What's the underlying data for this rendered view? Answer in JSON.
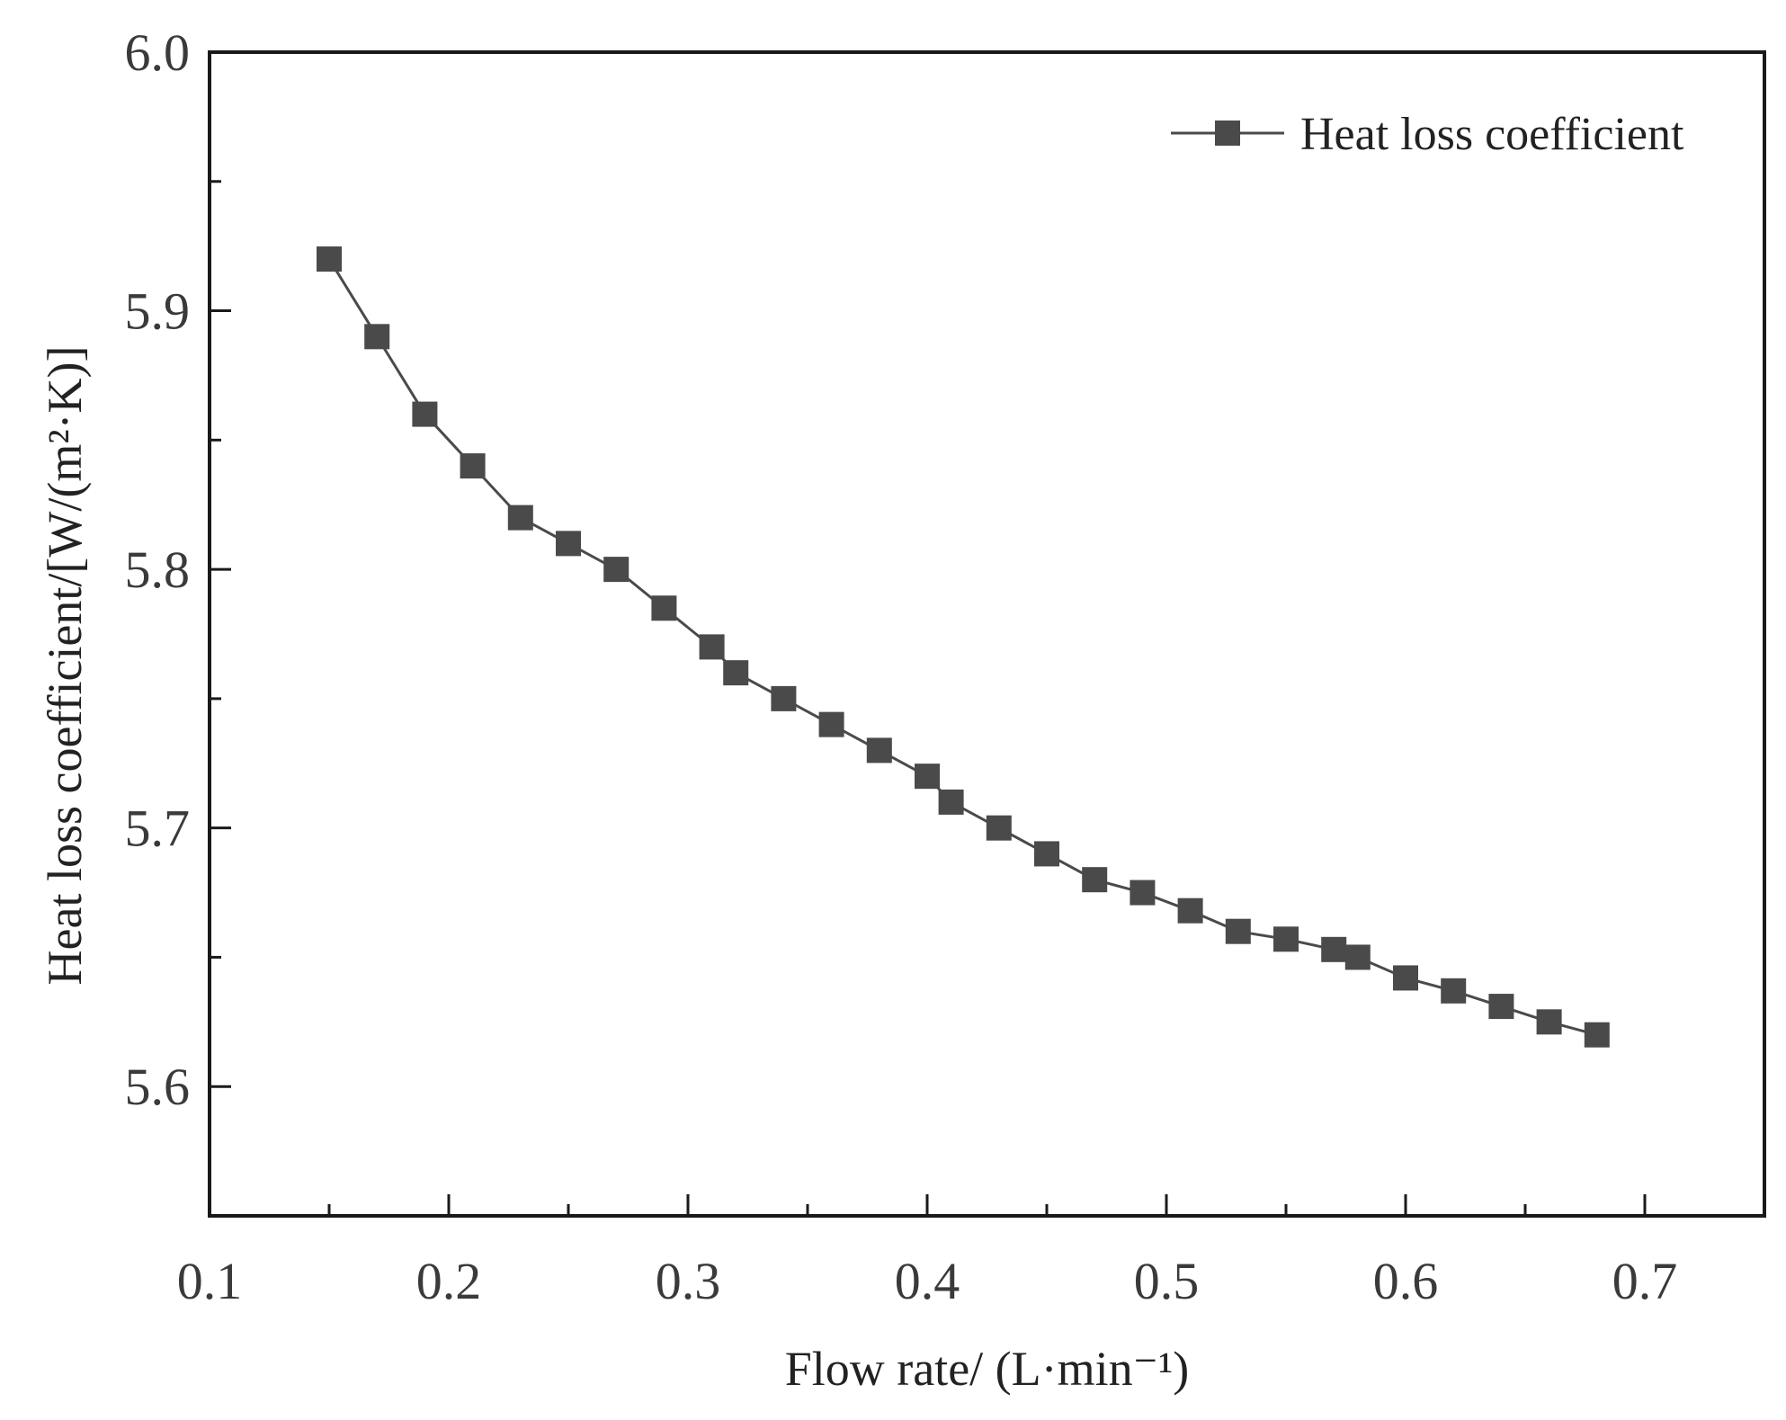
{
  "chart_data": {
    "type": "line",
    "title": "",
    "xlabel": "Flow rate/ (L·min⁻¹)",
    "ylabel": "Heat loss coefficient/[W/(m²·K)]",
    "xlim": [
      0.1,
      0.75
    ],
    "ylim": [
      5.55,
      6.0
    ],
    "x_ticks": [
      "0.1",
      "0.2",
      "0.3",
      "0.4",
      "0.5",
      "0.6",
      "0.7"
    ],
    "y_ticks": [
      "5.6",
      "5.7",
      "5.8",
      "5.9",
      "6.0"
    ],
    "legend_position": "top-right",
    "grid": false,
    "series": [
      {
        "name": "Heat loss coefficient",
        "color": "#4a4a4a",
        "marker": "square",
        "x": [
          0.15,
          0.17,
          0.19,
          0.21,
          0.23,
          0.25,
          0.27,
          0.29,
          0.31,
          0.32,
          0.34,
          0.36,
          0.38,
          0.4,
          0.41,
          0.43,
          0.45,
          0.47,
          0.49,
          0.51,
          0.53,
          0.55,
          0.57,
          0.58,
          0.6,
          0.62,
          0.64,
          0.66,
          0.68
        ],
        "y": [
          5.92,
          5.89,
          5.86,
          5.84,
          5.82,
          5.81,
          5.8,
          5.785,
          5.77,
          5.76,
          5.75,
          5.74,
          5.73,
          5.72,
          5.71,
          5.7,
          5.69,
          5.68,
          5.675,
          5.668,
          5.66,
          5.657,
          5.653,
          5.65,
          5.642,
          5.637,
          5.631,
          5.625,
          5.62
        ]
      }
    ]
  }
}
